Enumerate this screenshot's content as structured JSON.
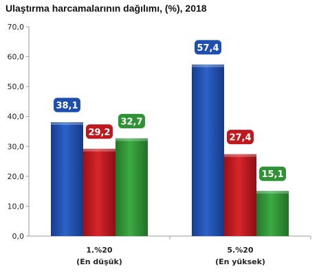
{
  "chart_data": {
    "type": "bar",
    "title": "Ulaştırma harcamalarının dağılımı, (%), 2018",
    "categories": [
      {
        "line1": "1.%20",
        "line2": "(En düşük)"
      },
      {
        "line1": "5.%20",
        "line2": "(En yüksek)"
      }
    ],
    "series": [
      {
        "values": [
          38.1,
          57.4
        ],
        "labels": [
          "38,1",
          "57,4"
        ],
        "color": "#1f4fae"
      },
      {
        "values": [
          29.2,
          27.4
        ],
        "labels": [
          "29,2",
          "27,4"
        ],
        "color": "#c0181f"
      },
      {
        "values": [
          32.7,
          15.1
        ],
        "labels": [
          "32,7",
          "15,1"
        ],
        "color": "#2f9336"
      }
    ],
    "ylim": [
      0,
      70
    ],
    "yticks": [
      0,
      10,
      20,
      30,
      40,
      50,
      60,
      70
    ],
    "ytick_labels": [
      "0,0",
      "10,0",
      "20,0",
      "30,0",
      "40,0",
      "50,0",
      "60,0",
      "70,0"
    ],
    "grid": false,
    "legend": "none"
  }
}
